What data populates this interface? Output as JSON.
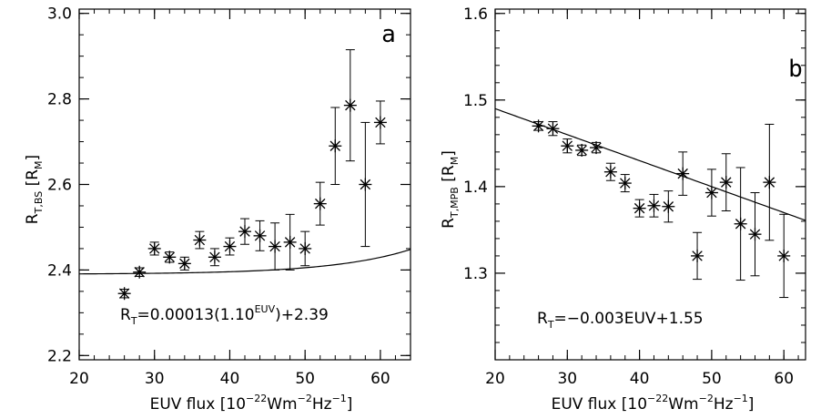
{
  "chart_data": [
    {
      "type": "scatter",
      "panel_label": "a",
      "xlabel": {
        "main": "EUV flux",
        "unit_prefix": "10",
        "exp1": "−22",
        "mid": "Wm",
        "exp2": "−2",
        "mid2": "Hz",
        "exp3": "−1"
      },
      "ylabel": {
        "main": "R",
        "sub": "T,BS",
        "unit": "R",
        "unit_sub": "M"
      },
      "xlim": [
        20,
        64
      ],
      "ylim": [
        2.19,
        3.01
      ],
      "xticks": [
        20,
        30,
        40,
        50,
        60
      ],
      "yticks": [
        2.2,
        2.4,
        2.6,
        2.8,
        3.0
      ],
      "ytick_labels": [
        "2.2",
        "2.4",
        "2.6",
        "2.8",
        "3.0"
      ],
      "equation": {
        "r": "R",
        "r_sub": "T",
        "text1": "=0.00013(1.10",
        "sup": "EUV",
        "text2": ")+2.39"
      },
      "fit": {
        "kind": "exponential",
        "a": 0.00013,
        "b": 1.1,
        "c": 2.39,
        "x_start": 20,
        "x_end": 64
      },
      "points": [
        {
          "x": 26,
          "y": 2.345,
          "err": 0.01
        },
        {
          "x": 28,
          "y": 2.395,
          "err": 0.01
        },
        {
          "x": 30,
          "y": 2.45,
          "err": 0.015
        },
        {
          "x": 32,
          "y": 2.43,
          "err": 0.012
        },
        {
          "x": 34,
          "y": 2.415,
          "err": 0.015
        },
        {
          "x": 36,
          "y": 2.47,
          "err": 0.02
        },
        {
          "x": 38,
          "y": 2.43,
          "err": 0.02
        },
        {
          "x": 40,
          "y": 2.455,
          "err": 0.02
        },
        {
          "x": 42,
          "y": 2.49,
          "err": 0.03
        },
        {
          "x": 44,
          "y": 2.48,
          "err": 0.035
        },
        {
          "x": 46,
          "y": 2.455,
          "err": 0.055
        },
        {
          "x": 48,
          "y": 2.465,
          "err": 0.065
        },
        {
          "x": 50,
          "y": 2.45,
          "err": 0.04
        },
        {
          "x": 52,
          "y": 2.555,
          "err": 0.05
        },
        {
          "x": 54,
          "y": 2.69,
          "err": 0.09
        },
        {
          "x": 56,
          "y": 2.785,
          "err": 0.13
        },
        {
          "x": 58,
          "y": 2.6,
          "err": 0.145
        },
        {
          "x": 60,
          "y": 2.745,
          "err": 0.05
        }
      ]
    },
    {
      "type": "scatter",
      "panel_label": "b",
      "xlabel": {
        "main": "EUV flux",
        "unit_prefix": "10",
        "exp1": "−22",
        "mid": "Wm",
        "exp2": "−2",
        "mid2": "Hz",
        "exp3": "−1"
      },
      "ylabel": {
        "main": "R",
        "sub": "T,MPB",
        "unit": "R",
        "unit_sub": "M"
      },
      "xlim": [
        20,
        63
      ],
      "ylim": [
        1.2,
        1.605
      ],
      "xticks": [
        20,
        30,
        40,
        50,
        60
      ],
      "yticks": [
        1.3,
        1.4,
        1.5,
        1.6
      ],
      "ytick_labels": [
        "1.3",
        "1.4",
        "1.5",
        "1.6"
      ],
      "equation": {
        "r": "R",
        "r_sub": "T",
        "text1": "=−0.003EUV+1.55",
        "sup": "",
        "text2": ""
      },
      "fit": {
        "kind": "linear",
        "slope": -0.003,
        "intercept": 1.55,
        "x_start": 20,
        "x_end": 63
      },
      "points": [
        {
          "x": 26,
          "y": 1.47,
          "err": 0.005
        },
        {
          "x": 28,
          "y": 1.467,
          "err": 0.008
        },
        {
          "x": 30,
          "y": 1.447,
          "err": 0.008
        },
        {
          "x": 32,
          "y": 1.442,
          "err": 0.006
        },
        {
          "x": 34,
          "y": 1.445,
          "err": 0.006
        },
        {
          "x": 36,
          "y": 1.417,
          "err": 0.01
        },
        {
          "x": 38,
          "y": 1.404,
          "err": 0.01
        },
        {
          "x": 40,
          "y": 1.375,
          "err": 0.01
        },
        {
          "x": 42,
          "y": 1.378,
          "err": 0.013
        },
        {
          "x": 44,
          "y": 1.377,
          "err": 0.018
        },
        {
          "x": 46,
          "y": 1.415,
          "err": 0.025
        },
        {
          "x": 48,
          "y": 1.32,
          "err": 0.027
        },
        {
          "x": 50,
          "y": 1.393,
          "err": 0.027
        },
        {
          "x": 52,
          "y": 1.405,
          "err": 0.033
        },
        {
          "x": 54,
          "y": 1.357,
          "err": 0.065
        },
        {
          "x": 56,
          "y": 1.345,
          "err": 0.048
        },
        {
          "x": 58,
          "y": 1.405,
          "err": 0.067
        },
        {
          "x": 60,
          "y": 1.32,
          "err": 0.048
        }
      ]
    }
  ]
}
